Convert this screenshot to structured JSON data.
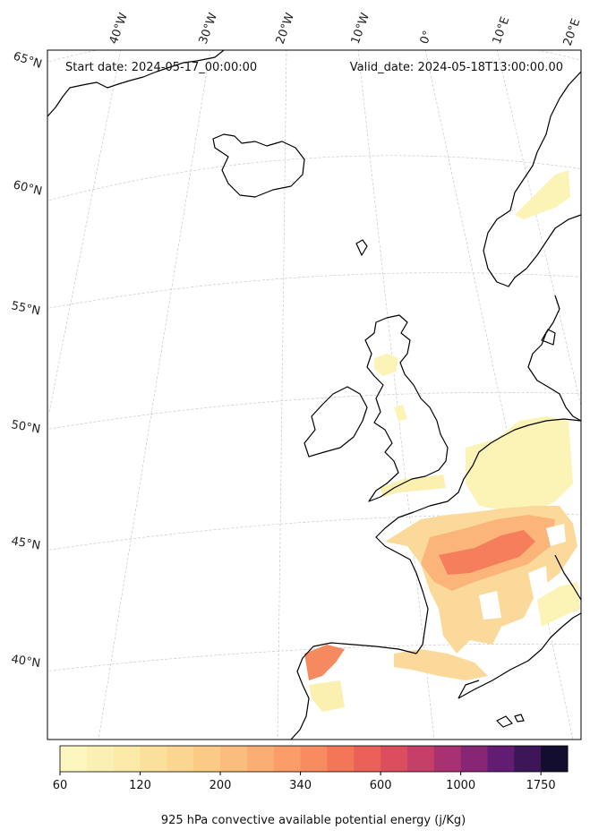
{
  "header": {
    "start_date": "Start date: 2024-05-17_00:00:00",
    "valid_date": "Valid_date: 2024-05-18T13:00:00.00"
  },
  "lon_labels": [
    "40°W",
    "30°W",
    "20°W",
    "10°W",
    "0°",
    "10°E",
    "20°E"
  ],
  "lat_labels": [
    "65°N",
    "60°N",
    "55°N",
    "50°N",
    "45°N",
    "40°N"
  ],
  "colorbar": {
    "title": "925 hPa convective available potential energy (j/Kg)",
    "tick_labels": [
      "60",
      "120",
      "200",
      "340",
      "600",
      "1000",
      "1750"
    ],
    "colors": [
      "#fcf6bf",
      "#fbf0b4",
      "#fbe9a8",
      "#fbe09c",
      "#fbd691",
      "#fbcb86",
      "#fbbd7d",
      "#fbae73",
      "#fb9d69",
      "#f98b60",
      "#f37658",
      "#eb6158",
      "#dc4e5e",
      "#c53f68",
      "#a83271",
      "#872674",
      "#631c73",
      "#3d1657",
      "#130d2f"
    ]
  },
  "map": {
    "projection": "lambert-conformal",
    "coastline_color": "#000000",
    "gridline_style": "dashed-grey",
    "field_colors": {
      "low": "#fcf3b6",
      "mid": "#fbcb86",
      "high": "#f37a5a"
    }
  }
}
